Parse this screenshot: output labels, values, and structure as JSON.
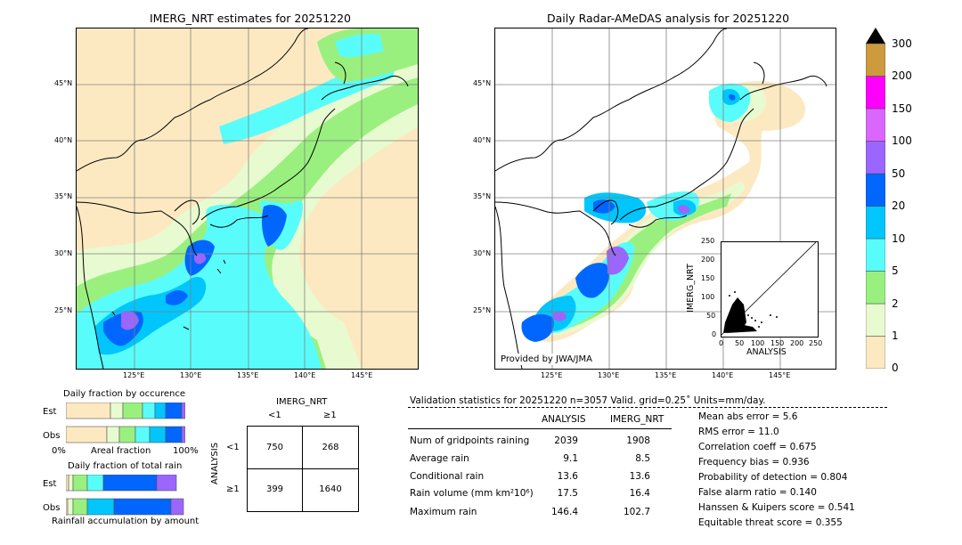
{
  "left_map": {
    "title": "IMERG_NRT estimates for 20251220",
    "lat_labels": [
      "45°N",
      "40°N",
      "35°N",
      "30°N",
      "25°N"
    ],
    "lon_labels": [
      "125°E",
      "130°E",
      "135°E",
      "140°E",
      "145°E"
    ]
  },
  "right_map": {
    "title": "Daily Radar-AMeDAS analysis for 20251220",
    "lat_labels": [
      "45°N",
      "40°N",
      "35°N",
      "30°N",
      "25°N"
    ],
    "lon_labels": [
      "125°E",
      "130°E",
      "135°E",
      "140°E",
      "145°E"
    ],
    "credit": "Provided by JWA/JMA"
  },
  "colorbar": {
    "labels": [
      "0",
      "1",
      "2",
      "5",
      "10",
      "20",
      "50",
      "100",
      "150",
      "200",
      "300"
    ],
    "colors": [
      "#fde9c1",
      "#e8fbd0",
      "#9af07f",
      "#58fdfb",
      "#00c6fd",
      "#0066fd",
      "#9b66fd",
      "#db66fd",
      "#ff00ff",
      "#cd9a3e"
    ]
  },
  "scatter": {
    "xlabel": "ANALYSIS",
    "ylabel": "IMERG_NRT",
    "ticks": [
      "0",
      "50",
      "100",
      "150",
      "200",
      "250"
    ]
  },
  "occurrence": {
    "title": "Daily fraction by occurence",
    "rows": [
      "Est",
      "Obs"
    ],
    "axis": [
      "0%",
      "Areal fraction",
      "100%"
    ]
  },
  "total_rain": {
    "title": "Daily fraction of total rain",
    "rows": [
      "Est",
      "Obs"
    ],
    "caption": "Rainfall accumulation by amount"
  },
  "contingency": {
    "col_header": "IMERG_NRT",
    "cols": [
      "<1",
      "≥1"
    ],
    "row_header": "ANALYSIS",
    "rows": [
      "<1",
      "≥1"
    ],
    "cells": [
      [
        "750",
        "268"
      ],
      [
        "399",
        "1640"
      ]
    ]
  },
  "validation": {
    "header": "Validation statistics for 20251220  n=3057 Valid. grid=0.25˚ Units=mm/day.",
    "col_analysis": "ANALYSIS",
    "col_imerg": "IMERG_NRT",
    "rows": [
      {
        "label": "Num of gridpoints raining",
        "analysis": "2039",
        "imerg": "1908"
      },
      {
        "label": "Average rain",
        "analysis": "9.1",
        "imerg": "8.5"
      },
      {
        "label": "Conditional rain",
        "analysis": "13.6",
        "imerg": "13.6"
      },
      {
        "label": "Rain volume (mm km²10⁶)",
        "analysis": "17.5",
        "imerg": "16.4"
      },
      {
        "label": "Maximum rain",
        "analysis": "146.4",
        "imerg": "102.7"
      }
    ],
    "scores": [
      "Mean abs error =    5.6",
      "RMS error =   11.0",
      "Correlation coeff =  0.675",
      "Frequency bias =  0.936",
      "Probability of detection =  0.804",
      "False alarm ratio =  0.140",
      "Hanssen & Kuipers score =  0.541",
      "Equitable threat score =  0.355"
    ]
  }
}
